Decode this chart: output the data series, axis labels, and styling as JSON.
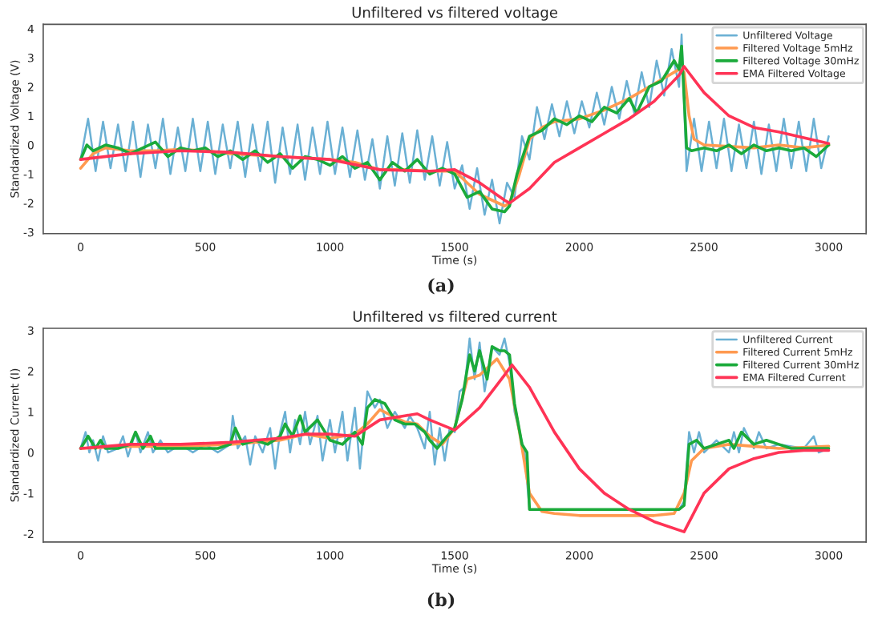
{
  "chart_data": [
    {
      "type": "line",
      "title": "Unfiltered vs filtered voltage",
      "xlabel": "Time (s)",
      "ylabel": "Standardized Voltage (V)",
      "annotations": [
        "(a)"
      ],
      "xlim": [
        -150,
        3150
      ],
      "ylim": [
        -3.05,
        4.15
      ],
      "xticks": [
        0,
        500,
        1000,
        1500,
        2000,
        2500,
        3000
      ],
      "yticks": [
        -3,
        -2,
        -1,
        0,
        1,
        2,
        3,
        4
      ],
      "legend": "top right",
      "series": [
        {
          "name": "Unfiltered Voltage",
          "color": "#6ab0d4",
          "x": [
            0,
            30,
            60,
            90,
            120,
            150,
            180,
            210,
            240,
            270,
            300,
            330,
            360,
            390,
            420,
            450,
            480,
            510,
            540,
            570,
            600,
            630,
            660,
            690,
            720,
            750,
            780,
            810,
            840,
            870,
            900,
            930,
            960,
            990,
            1020,
            1050,
            1080,
            1110,
            1140,
            1170,
            1200,
            1230,
            1260,
            1290,
            1320,
            1350,
            1380,
            1410,
            1440,
            1470,
            1500,
            1530,
            1560,
            1590,
            1620,
            1650,
            1680,
            1710,
            1740,
            1770,
            1800,
            1830,
            1860,
            1890,
            1920,
            1950,
            1980,
            2010,
            2040,
            2070,
            2100,
            2130,
            2160,
            2190,
            2220,
            2250,
            2280,
            2310,
            2340,
            2370,
            2400,
            2410,
            2430,
            2460,
            2490,
            2520,
            2550,
            2580,
            2610,
            2640,
            2670,
            2700,
            2730,
            2760,
            2790,
            2820,
            2850,
            2880,
            2910,
            2940,
            2970,
            3000
          ],
          "values": [
            -0.5,
            0.9,
            -0.9,
            0.8,
            -0.8,
            0.7,
            -0.9,
            0.8,
            -1.1,
            0.7,
            -0.8,
            0.9,
            -1.0,
            0.6,
            -0.9,
            0.9,
            -0.9,
            0.8,
            -1.0,
            0.7,
            -0.8,
            0.8,
            -1.1,
            0.7,
            -0.9,
            0.8,
            -1.3,
            0.6,
            -1.0,
            0.7,
            -1.2,
            0.6,
            -1.0,
            0.8,
            -1.0,
            0.6,
            -1.1,
            0.5,
            -1.2,
            0.2,
            -1.5,
            0.3,
            -1.4,
            0.4,
            -1.3,
            0.5,
            -1.2,
            0.3,
            -1.4,
            0.1,
            -1.5,
            -0.7,
            -2.2,
            -0.8,
            -2.4,
            -1.2,
            -2.7,
            -1.3,
            -1.8,
            0.3,
            -0.5,
            1.3,
            0.2,
            1.4,
            0.3,
            1.5,
            0.4,
            1.5,
            0.6,
            1.8,
            0.7,
            2.0,
            0.9,
            2.2,
            1.1,
            2.5,
            1.3,
            2.9,
            1.7,
            3.3,
            2.0,
            3.8,
            -0.9,
            0.9,
            -0.9,
            0.8,
            -0.8,
            0.9,
            -0.9,
            0.7,
            -0.8,
            0.8,
            -1.0,
            0.7,
            -0.9,
            0.9,
            -0.8,
            0.8,
            -0.9,
            0.9,
            -0.8,
            0.3
          ]
        },
        {
          "name": "Filtered Voltage 5mHz",
          "color": "#ff9a50",
          "x": [
            0,
            50,
            100,
            200,
            300,
            400,
            500,
            600,
            700,
            800,
            900,
            1000,
            1100,
            1200,
            1300,
            1400,
            1500,
            1550,
            1600,
            1650,
            1700,
            1720,
            1760,
            1800,
            1850,
            1900,
            2000,
            2100,
            2200,
            2300,
            2400,
            2420,
            2440,
            2460,
            2500,
            2600,
            2700,
            2800,
            2900,
            3000
          ],
          "values": [
            -0.8,
            -0.3,
            -0.1,
            -0.2,
            -0.2,
            -0.15,
            -0.2,
            -0.3,
            -0.35,
            -0.4,
            -0.45,
            -0.5,
            -0.6,
            -0.85,
            -0.85,
            -0.9,
            -0.9,
            -1.3,
            -1.7,
            -1.9,
            -2.1,
            -2.0,
            -1.0,
            0.2,
            0.6,
            0.8,
            0.9,
            1.2,
            1.6,
            2.1,
            2.6,
            2.5,
            1.0,
            0.2,
            0.0,
            -0.05,
            -0.1,
            0.0,
            -0.1,
            0.0
          ]
        },
        {
          "name": "Filtered Voltage 30mHz",
          "color": "#1aaa3a",
          "x": [
            0,
            25,
            50,
            100,
            150,
            200,
            250,
            300,
            350,
            400,
            450,
            500,
            550,
            600,
            650,
            700,
            750,
            800,
            850,
            900,
            950,
            1000,
            1050,
            1100,
            1150,
            1200,
            1250,
            1300,
            1350,
            1400,
            1450,
            1500,
            1550,
            1600,
            1650,
            1700,
            1720,
            1750,
            1800,
            1850,
            1900,
            1950,
            2000,
            2050,
            2100,
            2150,
            2200,
            2230,
            2280,
            2330,
            2380,
            2400,
            2410,
            2430,
            2450,
            2500,
            2550,
            2600,
            2650,
            2700,
            2750,
            2800,
            2850,
            2900,
            2950,
            3000
          ],
          "values": [
            -0.5,
            0.0,
            -0.2,
            0.0,
            -0.1,
            -0.3,
            -0.1,
            0.1,
            -0.4,
            -0.1,
            -0.2,
            -0.1,
            -0.4,
            -0.2,
            -0.5,
            -0.2,
            -0.6,
            -0.3,
            -0.8,
            -0.4,
            -0.5,
            -0.7,
            -0.4,
            -0.8,
            -0.6,
            -1.2,
            -0.6,
            -0.9,
            -0.5,
            -1.0,
            -0.8,
            -1.0,
            -1.8,
            -1.6,
            -2.2,
            -2.3,
            -2.1,
            -1.0,
            0.3,
            0.5,
            0.9,
            0.7,
            1.0,
            0.8,
            1.3,
            1.1,
            1.6,
            1.1,
            2.0,
            2.2,
            2.9,
            2.6,
            3.4,
            -0.1,
            -0.2,
            -0.1,
            -0.2,
            0.0,
            -0.3,
            0.0,
            -0.2,
            -0.1,
            -0.2,
            -0.1,
            -0.4,
            0.0
          ]
        },
        {
          "name": "EMA Filtered Voltage",
          "color": "#ff3355",
          "x": [
            0,
            200,
            400,
            600,
            800,
            1000,
            1200,
            1400,
            1500,
            1600,
            1700,
            1720,
            1800,
            1900,
            2000,
            2100,
            2200,
            2300,
            2400,
            2420,
            2500,
            2600,
            2700,
            2800,
            2900,
            3000
          ],
          "values": [
            -0.5,
            -0.3,
            -0.2,
            -0.25,
            -0.4,
            -0.5,
            -0.85,
            -0.9,
            -0.85,
            -1.3,
            -1.9,
            -2.0,
            -1.5,
            -0.6,
            -0.1,
            0.4,
            0.9,
            1.5,
            2.4,
            2.7,
            1.8,
            1.0,
            0.6,
            0.45,
            0.25,
            0.05
          ]
        }
      ]
    },
    {
      "type": "line",
      "title": "Unfiltered vs filtered current",
      "xlabel": "Time (s)",
      "ylabel": "Standardized Current (I)",
      "annotations": [
        "(b)"
      ],
      "xlim": [
        -150,
        3150
      ],
      "ylim": [
        -2.2,
        3.05
      ],
      "xticks": [
        0,
        500,
        1000,
        1500,
        2000,
        2500,
        3000
      ],
      "yticks": [
        -2,
        -1,
        0,
        1,
        2,
        3
      ],
      "legend": "top right",
      "series": [
        {
          "name": "Unfiltered Current",
          "color": "#6ab0d4",
          "x": [
            0,
            20,
            35,
            50,
            70,
            90,
            110,
            150,
            170,
            190,
            220,
            240,
            270,
            290,
            320,
            350,
            400,
            450,
            500,
            550,
            600,
            610,
            630,
            660,
            680,
            700,
            730,
            760,
            780,
            800,
            820,
            840,
            860,
            880,
            900,
            920,
            950,
            970,
            1000,
            1020,
            1050,
            1070,
            1100,
            1120,
            1150,
            1180,
            1200,
            1230,
            1260,
            1300,
            1320,
            1350,
            1380,
            1400,
            1420,
            1440,
            1460,
            1480,
            1500,
            1520,
            1540,
            1560,
            1580,
            1600,
            1620,
            1650,
            1680,
            1700,
            1720,
            1740,
            1760,
            1780,
            1800,
            2400,
            2420,
            2440,
            2460,
            2480,
            2500,
            2550,
            2600,
            2620,
            2640,
            2660,
            2700,
            2720,
            2750,
            2800,
            2900,
            2940,
            2960,
            3000
          ],
          "values": [
            0.1,
            0.5,
            0.0,
            0.3,
            -0.2,
            0.4,
            0.0,
            0.1,
            0.4,
            -0.1,
            0.5,
            0.0,
            0.5,
            0.0,
            0.3,
            0.0,
            0.2,
            0.0,
            0.2,
            0.0,
            0.2,
            0.9,
            0.1,
            0.4,
            -0.3,
            0.4,
            0.0,
            0.6,
            -0.4,
            0.5,
            1.0,
            0.0,
            0.8,
            0.2,
            1.0,
            0.2,
            0.9,
            -0.2,
            0.8,
            0.0,
            1.0,
            -0.2,
            1.1,
            -0.4,
            1.5,
            1.1,
            1.3,
            0.6,
            1.0,
            0.6,
            0.9,
            0.6,
            0.1,
            1.0,
            -0.3,
            0.6,
            -0.2,
            0.6,
            0.5,
            1.5,
            1.6,
            2.8,
            1.8,
            2.7,
            1.5,
            2.6,
            2.4,
            2.8,
            2.2,
            1.0,
            0.5,
            0.0,
            -1.4,
            -1.4,
            -1.2,
            0.5,
            0.0,
            0.5,
            0.0,
            0.3,
            0.0,
            0.5,
            0.0,
            0.6,
            0.1,
            0.5,
            0.1,
            0.2,
            0.1,
            0.4,
            0.0,
            0.1
          ]
        },
        {
          "name": "Filtered Current 5mHz",
          "color": "#ff9a50",
          "x": [
            0,
            200,
            400,
            600,
            800,
            900,
            1000,
            1100,
            1150,
            1200,
            1250,
            1300,
            1350,
            1400,
            1450,
            1500,
            1550,
            1600,
            1670,
            1720,
            1760,
            1800,
            1850,
            1900,
            2000,
            2100,
            2200,
            2300,
            2380,
            2420,
            2450,
            2500,
            2600,
            2700,
            2800,
            3000
          ],
          "values": [
            0.1,
            0.15,
            0.15,
            0.2,
            0.3,
            0.45,
            0.35,
            0.45,
            0.7,
            1.05,
            0.9,
            0.75,
            0.7,
            0.4,
            0.2,
            0.6,
            1.8,
            1.9,
            2.3,
            1.8,
            0.5,
            -1.0,
            -1.45,
            -1.5,
            -1.55,
            -1.55,
            -1.55,
            -1.55,
            -1.5,
            -1.0,
            -0.2,
            0.1,
            0.2,
            0.15,
            0.1,
            0.15
          ]
        },
        {
          "name": "Filtered Current 30mHz",
          "color": "#1aaa3a",
          "x": [
            0,
            30,
            60,
            80,
            100,
            150,
            200,
            220,
            250,
            280,
            300,
            350,
            400,
            450,
            500,
            550,
            600,
            620,
            650,
            700,
            750,
            800,
            820,
            850,
            880,
            900,
            950,
            1000,
            1050,
            1100,
            1130,
            1150,
            1180,
            1220,
            1260,
            1300,
            1340,
            1380,
            1400,
            1430,
            1470,
            1500,
            1530,
            1560,
            1580,
            1600,
            1630,
            1650,
            1680,
            1700,
            1720,
            1740,
            1770,
            1790,
            1800,
            1900,
            2000,
            2100,
            2200,
            2300,
            2400,
            2420,
            2440,
            2470,
            2500,
            2550,
            2600,
            2620,
            2650,
            2700,
            2750,
            2800,
            2850,
            2900,
            2950,
            3000
          ],
          "values": [
            0.1,
            0.4,
            0.1,
            0.3,
            0.1,
            0.1,
            0.2,
            0.5,
            0.1,
            0.4,
            0.1,
            0.1,
            0.1,
            0.1,
            0.1,
            0.1,
            0.2,
            0.6,
            0.2,
            0.3,
            0.2,
            0.4,
            0.7,
            0.4,
            0.9,
            0.5,
            0.8,
            0.3,
            0.2,
            0.5,
            0.2,
            1.1,
            1.3,
            1.2,
            0.8,
            0.7,
            0.7,
            0.5,
            0.3,
            0.1,
            0.4,
            0.6,
            1.3,
            2.4,
            2.0,
            2.5,
            1.8,
            2.6,
            2.5,
            2.5,
            2.4,
            1.2,
            0.2,
            0.0,
            -1.4,
            -1.4,
            -1.4,
            -1.4,
            -1.4,
            -1.4,
            -1.4,
            -1.3,
            0.2,
            0.3,
            0.1,
            0.2,
            0.3,
            0.1,
            0.5,
            0.2,
            0.3,
            0.2,
            0.1,
            0.1,
            0.1,
            0.1
          ]
        },
        {
          "name": "EMA Filtered Current",
          "color": "#ff3355",
          "x": [
            0,
            200,
            400,
            600,
            800,
            900,
            1000,
            1100,
            1200,
            1300,
            1350,
            1400,
            1500,
            1600,
            1700,
            1730,
            1800,
            1900,
            2000,
            2100,
            2200,
            2300,
            2420,
            2500,
            2600,
            2700,
            2800,
            2900,
            3000
          ],
          "values": [
            0.1,
            0.2,
            0.2,
            0.25,
            0.35,
            0.45,
            0.45,
            0.4,
            0.8,
            0.9,
            0.95,
            0.8,
            0.55,
            1.1,
            1.9,
            2.15,
            1.6,
            0.5,
            -0.4,
            -1.0,
            -1.4,
            -1.7,
            -1.95,
            -1.0,
            -0.4,
            -0.15,
            0.0,
            0.05,
            0.05
          ]
        }
      ]
    }
  ]
}
